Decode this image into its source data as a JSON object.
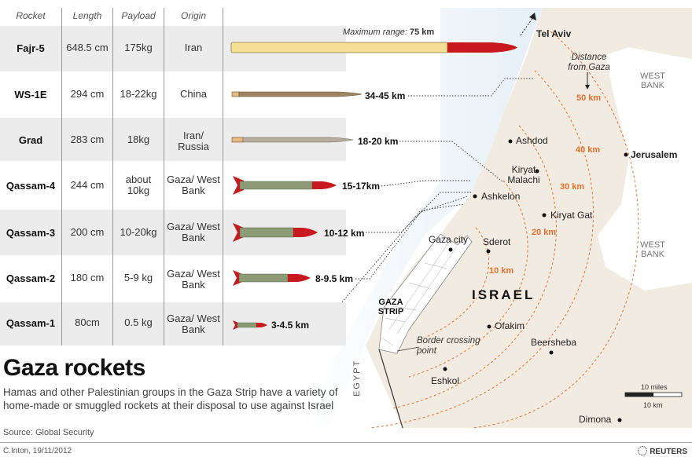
{
  "title": "Gaza rockets",
  "description": "Hamas and other Palestinian groups in the Gaza Strip  have a variety of home-made or smuggled rockets at their disposal to use against Israel",
  "source": "Source: Global Security",
  "credit": "C.Inton, 19/11/2012",
  "brand": "REUTERS",
  "headers": {
    "rocket": "Rocket",
    "length": "Length",
    "payload": "Payload",
    "origin": "Origin"
  },
  "max_range_label": "Maximum range:",
  "rockets": [
    {
      "name": "Fajr-5",
      "length": "648.5 cm",
      "payload": "175kg",
      "origin": "Iran",
      "range": "75 km"
    },
    {
      "name": "WS-1E",
      "length": "294 cm",
      "payload": "18-22kg",
      "origin": "China",
      "range": "34-45 km"
    },
    {
      "name": "Grad",
      "length": "283 cm",
      "payload": "18kg",
      "origin": "Iran/ Russia",
      "range": "18-20 km"
    },
    {
      "name": "Qassam-4",
      "length": "244 cm",
      "payload": "about 10kg",
      "origin": "Gaza/ West Bank",
      "range": "15-17km"
    },
    {
      "name": "Qassam-3",
      "length": "200 cm",
      "payload": "10-20kg",
      "origin": "Gaza/ West Bank",
      "range": "10-12 km"
    },
    {
      "name": "Qassam-2",
      "length": "180 cm",
      "payload": "5-9 kg",
      "origin": "Gaza/ West Bank",
      "range": "8-9.5 km"
    },
    {
      "name": "Qassam-1",
      "length": "80cm",
      "payload": "0.5 kg",
      "origin": "Gaza/ West Bank",
      "range": "3-4.5 km"
    }
  ],
  "map": {
    "cities": {
      "tel_aviv": "Tel Aviv",
      "ashdod": "Ashdod",
      "kiryat_malachi": "Kiryat Malachi",
      "ashkelon": "Ashkelon",
      "kiryat_gat": "Kiryat Gat",
      "gaza_city": "Gaza city",
      "sderot": "Sderot",
      "ofakim": "Ofakim",
      "beersheba": "Beersheba",
      "eshkol": "Eshkol",
      "dimona": "Dimona",
      "jerusalem": "Jerusalem"
    },
    "regions": {
      "israel": "ISRAEL",
      "gaza_strip": "GAZA STRIP",
      "egypt": "EGYPT",
      "west_bank_1": "WEST BANK",
      "west_bank_2": "WEST BANK"
    },
    "border_crossing": "Border crossing point",
    "distance_label": "Distance from Gaza",
    "distances": [
      "10 km",
      "20 km",
      "30 km",
      "40 km",
      "50 km"
    ],
    "scale": {
      "miles": "10 miles",
      "km": "10 km"
    }
  },
  "colors": {
    "row_alt": "#ececec",
    "distance": "#e8702a",
    "land": "#f1ebe2",
    "sea": "#ffffff",
    "rocket_red": "#c8191f",
    "qassam_green": "#8c9a76"
  }
}
